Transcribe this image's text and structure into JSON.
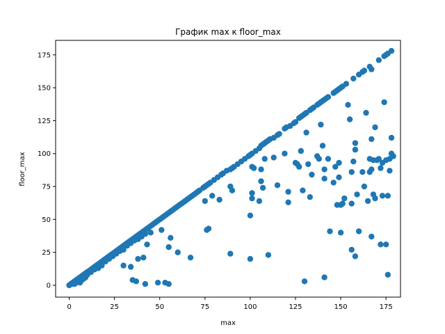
{
  "chart_data": {
    "type": "scatter",
    "title": "График max к floor_max",
    "xlabel": "max",
    "ylabel": "floor_max",
    "xlim": [
      -7.5,
      183
    ],
    "ylim": [
      -9,
      186
    ],
    "xticks": [
      0,
      25,
      50,
      75,
      100,
      125,
      150,
      175
    ],
    "yticks": [
      0,
      25,
      50,
      75,
      100,
      125,
      150,
      175
    ],
    "grid": false,
    "marker_color": "#1f77b4",
    "series": [
      {
        "points": [
          [
            0,
            0
          ],
          [
            0.5,
            0.5
          ],
          [
            1,
            1
          ],
          [
            1.5,
            1.5
          ],
          [
            2,
            2
          ],
          [
            2.5,
            2.5
          ],
          [
            3,
            3
          ],
          [
            3.5,
            3.5
          ],
          [
            4,
            4
          ],
          [
            4.5,
            4.5
          ],
          [
            5,
            5
          ],
          [
            5.5,
            5.5
          ],
          [
            6,
            6
          ],
          [
            6.5,
            6.5
          ],
          [
            7,
            7
          ],
          [
            7.5,
            7.5
          ],
          [
            8,
            8
          ],
          [
            8.5,
            8.5
          ],
          [
            9,
            9
          ],
          [
            9.5,
            9.5
          ],
          [
            10,
            10
          ],
          [
            11,
            11
          ],
          [
            12,
            12
          ],
          [
            13,
            13
          ],
          [
            14,
            14
          ],
          [
            15,
            15
          ],
          [
            16,
            16
          ],
          [
            17,
            17
          ],
          [
            18,
            18
          ],
          [
            19,
            19
          ],
          [
            20,
            20
          ],
          [
            21,
            21
          ],
          [
            22,
            22
          ],
          [
            23,
            23
          ],
          [
            24,
            24
          ],
          [
            25,
            25
          ],
          [
            26,
            26
          ],
          [
            27,
            27
          ],
          [
            28,
            28
          ],
          [
            29,
            29
          ],
          [
            30,
            30
          ],
          [
            31,
            31
          ],
          [
            32,
            32
          ],
          [
            33,
            33
          ],
          [
            34,
            34
          ],
          [
            35,
            35
          ],
          [
            36,
            36
          ],
          [
            37,
            37
          ],
          [
            38,
            38
          ],
          [
            39,
            39
          ],
          [
            40,
            40
          ],
          [
            41,
            41
          ],
          [
            42,
            42
          ],
          [
            43,
            43
          ],
          [
            44,
            44
          ],
          [
            45,
            45
          ],
          [
            46,
            46
          ],
          [
            47,
            47
          ],
          [
            48,
            48
          ],
          [
            49,
            49
          ],
          [
            50,
            50
          ],
          [
            51,
            51
          ],
          [
            52,
            52
          ],
          [
            53,
            53
          ],
          [
            54,
            54
          ],
          [
            55,
            55
          ],
          [
            56,
            56
          ],
          [
            57,
            57
          ],
          [
            58,
            58
          ],
          [
            59,
            59
          ],
          [
            60,
            60
          ],
          [
            61,
            61
          ],
          [
            62,
            62
          ],
          [
            63,
            63
          ],
          [
            64,
            64
          ],
          [
            65,
            65
          ],
          [
            66,
            66
          ],
          [
            67,
            67
          ],
          [
            68,
            68
          ],
          [
            69,
            69
          ],
          [
            70,
            70
          ],
          [
            71,
            71
          ],
          [
            72,
            72
          ],
          [
            74,
            74
          ],
          [
            75,
            75
          ],
          [
            76,
            76
          ],
          [
            77,
            77
          ],
          [
            78,
            78
          ],
          [
            80,
            80
          ],
          [
            82,
            82
          ],
          [
            84,
            84
          ],
          [
            85,
            85
          ],
          [
            87,
            87
          ],
          [
            89,
            88
          ],
          [
            90,
            89
          ],
          [
            91,
            90
          ],
          [
            93,
            92
          ],
          [
            95,
            94
          ],
          [
            97,
            96
          ],
          [
            99,
            98
          ],
          [
            100,
            99
          ],
          [
            101,
            100
          ],
          [
            103,
            102
          ],
          [
            105,
            104
          ],
          [
            106,
            106
          ],
          [
            107,
            107
          ],
          [
            108,
            108
          ],
          [
            109,
            109
          ],
          [
            110,
            110
          ],
          [
            111,
            111
          ],
          [
            113,
            112
          ],
          [
            115,
            114
          ],
          [
            116,
            115
          ],
          [
            119,
            119
          ],
          [
            120,
            120
          ],
          [
            122,
            121
          ],
          [
            124,
            123
          ],
          [
            125,
            124
          ],
          [
            127,
            127
          ],
          [
            128,
            128
          ],
          [
            129,
            129
          ],
          [
            130,
            130
          ],
          [
            131,
            131
          ],
          [
            133,
            133
          ],
          [
            134,
            134
          ],
          [
            135,
            135
          ],
          [
            137,
            137
          ],
          [
            138,
            138
          ],
          [
            139,
            139
          ],
          [
            140,
            140
          ],
          [
            141,
            141
          ],
          [
            142,
            142
          ],
          [
            143,
            143
          ],
          [
            146,
            146
          ],
          [
            147,
            147
          ],
          [
            148,
            148
          ],
          [
            149,
            149
          ],
          [
            150,
            150
          ],
          [
            151,
            151
          ],
          [
            153,
            153
          ],
          [
            157,
            157
          ],
          [
            160,
            160
          ],
          [
            162,
            162
          ],
          [
            163,
            163
          ],
          [
            166,
            166
          ],
          [
            167,
            164
          ],
          [
            171,
            171
          ],
          [
            174,
            174
          ],
          [
            175,
            175
          ],
          [
            176,
            176
          ],
          [
            178,
            178
          ],
          [
            2,
            1
          ],
          [
            3,
            1
          ],
          [
            4,
            2
          ],
          [
            5,
            3
          ],
          [
            6,
            2
          ],
          [
            7,
            4
          ],
          [
            8,
            5
          ],
          [
            9,
            6
          ],
          [
            10,
            8
          ],
          [
            12,
            10
          ],
          [
            14,
            12
          ],
          [
            16,
            13
          ],
          [
            18,
            15
          ],
          [
            20,
            18
          ],
          [
            22,
            20
          ],
          [
            24,
            22
          ],
          [
            26,
            24
          ],
          [
            28,
            26
          ],
          [
            30,
            27
          ],
          [
            32,
            30
          ],
          [
            34,
            32
          ],
          [
            36,
            34
          ],
          [
            38,
            35
          ],
          [
            40,
            37
          ],
          [
            42,
            39
          ],
          [
            30,
            15
          ],
          [
            34,
            14
          ],
          [
            35,
            4
          ],
          [
            37,
            3
          ],
          [
            38,
            20
          ],
          [
            41,
            21
          ],
          [
            42,
            1
          ],
          [
            43,
            31
          ],
          [
            45,
            40
          ],
          [
            49,
            2
          ],
          [
            51,
            42
          ],
          [
            53,
            2
          ],
          [
            55,
            1
          ],
          [
            55,
            29
          ],
          [
            56,
            36
          ],
          [
            60,
            25
          ],
          [
            67,
            21
          ],
          [
            75,
            64
          ],
          [
            76,
            42
          ],
          [
            77,
            43
          ],
          [
            79,
            68
          ],
          [
            83,
            65
          ],
          [
            89,
            24
          ],
          [
            89,
            75
          ],
          [
            90,
            72
          ],
          [
            100,
            53
          ],
          [
            100,
            20
          ],
          [
            101,
            70
          ],
          [
            101,
            66
          ],
          [
            101,
            90
          ],
          [
            102,
            89
          ],
          [
            105,
            64
          ],
          [
            106,
            88
          ],
          [
            106,
            79
          ],
          [
            107,
            74
          ],
          [
            108,
            96
          ],
          [
            110,
            23
          ],
          [
            113,
            97
          ],
          [
            115,
            76
          ],
          [
            119,
            100
          ],
          [
            121,
            63
          ],
          [
            121,
            71
          ],
          [
            125,
            93
          ],
          [
            126,
            92
          ],
          [
            127,
            90
          ],
          [
            128,
            102
          ],
          [
            129,
            72
          ],
          [
            130,
            3
          ],
          [
            131,
            116
          ],
          [
            132,
            92
          ],
          [
            133,
            67
          ],
          [
            134,
            84
          ],
          [
            137,
            98
          ],
          [
            138,
            96
          ],
          [
            139,
            122
          ],
          [
            140,
            106
          ],
          [
            141,
            6
          ],
          [
            141,
            88
          ],
          [
            141,
            81
          ],
          [
            143,
            96
          ],
          [
            144,
            41
          ],
          [
            146,
            78
          ],
          [
            147,
            90
          ],
          [
            148,
            61
          ],
          [
            149,
            82
          ],
          [
            149,
            93
          ],
          [
            150,
            61
          ],
          [
            150,
            40
          ],
          [
            151,
            62
          ],
          [
            152,
            66
          ],
          [
            154,
            137
          ],
          [
            155,
            126
          ],
          [
            156,
            27
          ],
          [
            156,
            62
          ],
          [
            156,
            86
          ],
          [
            157,
            94
          ],
          [
            158,
            108
          ],
          [
            158,
            103
          ],
          [
            158,
            22
          ],
          [
            159,
            69
          ],
          [
            160,
            41
          ],
          [
            162,
            86
          ],
          [
            163,
            75
          ],
          [
            164,
            131
          ],
          [
            165,
            64
          ],
          [
            166,
            96
          ],
          [
            166,
            86
          ],
          [
            167,
            88
          ],
          [
            167,
            111
          ],
          [
            167,
            37
          ],
          [
            168,
            69
          ],
          [
            168,
            95
          ],
          [
            169,
            120
          ],
          [
            169,
            66
          ],
          [
            170,
            95
          ],
          [
            171,
            96
          ],
          [
            172,
            31
          ],
          [
            172,
            89
          ],
          [
            173,
            68
          ],
          [
            173,
            93
          ],
          [
            174,
            139
          ],
          [
            175,
            31
          ],
          [
            175,
            95
          ],
          [
            176,
            68
          ],
          [
            176,
            8
          ],
          [
            177,
            96
          ],
          [
            177,
            87
          ],
          [
            178,
            112
          ],
          [
            178,
            100
          ],
          [
            179,
            98
          ]
        ]
      }
    ]
  }
}
